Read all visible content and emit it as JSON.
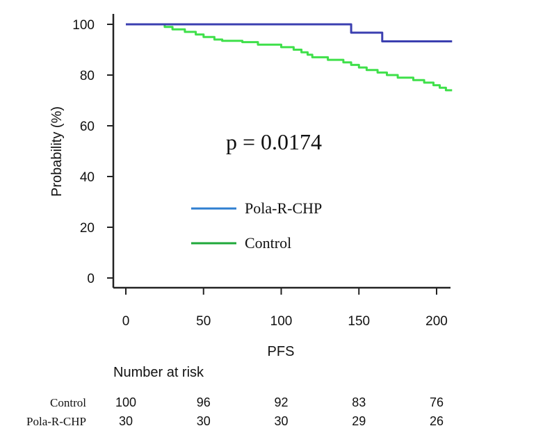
{
  "chart_data": {
    "type": "line",
    "ylabel": "Probability (%)",
    "xlabel": "PFS",
    "xlim": [
      0,
      210
    ],
    "ylim": [
      0,
      100
    ],
    "xticks": [
      0,
      50,
      100,
      150,
      200
    ],
    "yticks": [
      0,
      20,
      40,
      60,
      80,
      100
    ],
    "annotation": "p = 0.0174",
    "legend_position": "center-left",
    "series": [
      {
        "name": "Pola-R-CHP",
        "color": "#3b3fb0",
        "legend_color": "#2f7fd0",
        "step": true,
        "points": [
          [
            0,
            100
          ],
          [
            145,
            100
          ],
          [
            145,
            96.7
          ],
          [
            165,
            96.7
          ],
          [
            165,
            93.3
          ],
          [
            210,
            93.3
          ]
        ]
      },
      {
        "name": "Control",
        "color": "#3fe04a",
        "legend_color": "#1fa83a",
        "step": true,
        "points": [
          [
            0,
            100
          ],
          [
            25,
            100
          ],
          [
            25,
            99
          ],
          [
            30,
            99
          ],
          [
            30,
            98
          ],
          [
            38,
            98
          ],
          [
            38,
            97
          ],
          [
            45,
            97
          ],
          [
            45,
            96
          ],
          [
            50,
            96
          ],
          [
            50,
            95
          ],
          [
            57,
            95
          ],
          [
            57,
            94
          ],
          [
            62,
            94
          ],
          [
            62,
            93.5
          ],
          [
            75,
            93.5
          ],
          [
            75,
            93
          ],
          [
            85,
            93
          ],
          [
            85,
            92
          ],
          [
            100,
            92
          ],
          [
            100,
            91
          ],
          [
            108,
            91
          ],
          [
            108,
            90
          ],
          [
            113,
            90
          ],
          [
            113,
            89
          ],
          [
            117,
            89
          ],
          [
            117,
            88
          ],
          [
            120,
            88
          ],
          [
            120,
            87
          ],
          [
            130,
            87
          ],
          [
            130,
            86
          ],
          [
            140,
            86
          ],
          [
            140,
            85
          ],
          [
            145,
            85
          ],
          [
            145,
            84
          ],
          [
            150,
            84
          ],
          [
            150,
            83
          ],
          [
            155,
            83
          ],
          [
            155,
            82
          ],
          [
            162,
            82
          ],
          [
            162,
            81
          ],
          [
            168,
            81
          ],
          [
            168,
            80
          ],
          [
            175,
            80
          ],
          [
            175,
            79
          ],
          [
            185,
            79
          ],
          [
            185,
            78
          ],
          [
            192,
            78
          ],
          [
            192,
            77
          ],
          [
            198,
            77
          ],
          [
            198,
            76
          ],
          [
            202,
            76
          ],
          [
            202,
            75
          ],
          [
            206,
            75
          ],
          [
            206,
            74
          ],
          [
            210,
            74
          ]
        ]
      }
    ]
  },
  "risk_table": {
    "title": "Number at risk",
    "rows": [
      {
        "label": "Control",
        "values": [
          "100",
          "96",
          "92",
          "83",
          "76"
        ]
      },
      {
        "label": "Pola-R-CHP",
        "values": [
          "30",
          "30",
          "30",
          "29",
          "26"
        ]
      }
    ]
  }
}
